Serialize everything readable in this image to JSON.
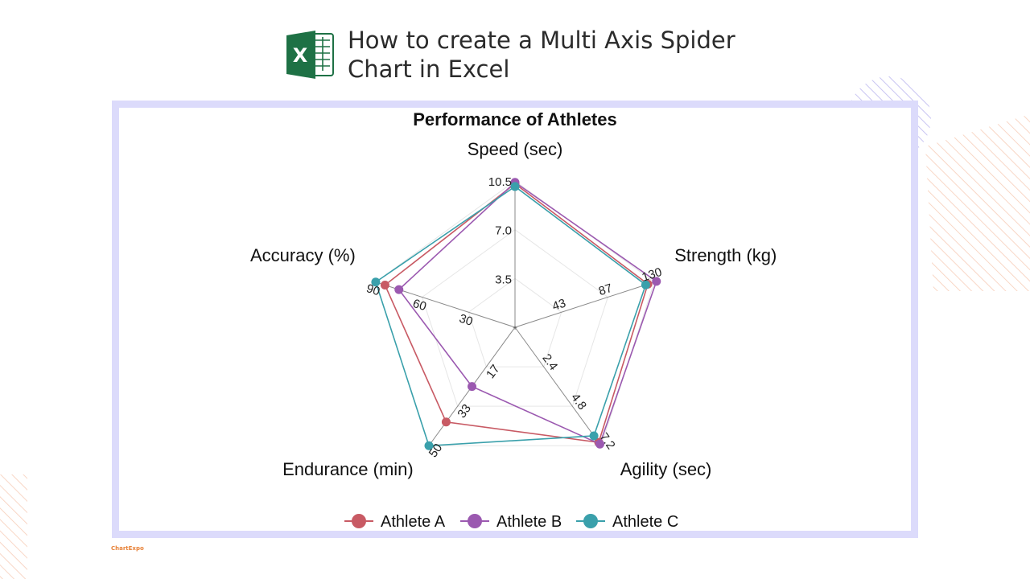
{
  "page": {
    "title_line1": "How to create a Multi Axis Spider",
    "title_line2": "Chart in Excel",
    "logo_icon": "excel-logo-icon",
    "logo_letter": "X",
    "brand": "ChartExpo",
    "colors": {
      "frame": "#dcdbfb",
      "excel_green": "#1e7145",
      "stripes_purple": "#c9c5f2",
      "stripes_peach": "#f7cdb8"
    }
  },
  "chart_data": {
    "type": "radar",
    "title": "Performance of Athletes",
    "axes": [
      {
        "label": "Speed (sec)",
        "max": 10.5,
        "ticks": [
          "3.5",
          "7.0",
          "10.5"
        ]
      },
      {
        "label": "Strength (kg)",
        "max": 130,
        "ticks": [
          "43",
          "87",
          "130"
        ]
      },
      {
        "label": "Agility (sec)",
        "max": 7.2,
        "ticks": [
          "2.4",
          "4.8",
          "7.2"
        ]
      },
      {
        "label": "Endurance (min)",
        "max": 50,
        "ticks": [
          "17",
          "33",
          "50"
        ]
      },
      {
        "label": "Accuracy (%)",
        "max": 90,
        "ticks": [
          "30",
          "60",
          "90"
        ]
      }
    ],
    "series": [
      {
        "name": "Athlete A",
        "color": "#c85a64",
        "values": [
          10.3,
          124,
          7.0,
          40,
          84
        ]
      },
      {
        "name": "Athlete B",
        "color": "#9b59b0",
        "values": [
          10.4,
          132,
          7.1,
          25,
          75
        ]
      },
      {
        "name": "Athlete C",
        "color": "#3aa0ab",
        "values": [
          10.1,
          122,
          6.6,
          50,
          90
        ]
      }
    ],
    "grid": true,
    "legend_position": "bottom-center"
  }
}
